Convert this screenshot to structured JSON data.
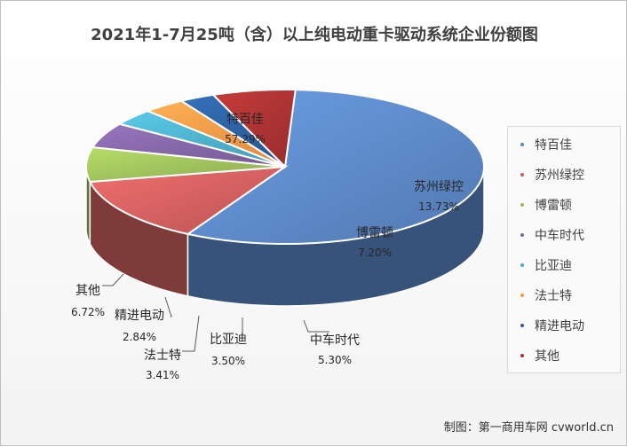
{
  "chart_data": {
    "type": "pie",
    "title": "2021年1-7月25吨（含）以上纯电动重卡驱动系统企业份额图",
    "slices": [
      {
        "name": "特百佳",
        "value": 57.29,
        "label": "57.29%",
        "color": "#5b86c3"
      },
      {
        "name": "苏州绿控",
        "value": 13.73,
        "label": "13.73%",
        "color": "#cd5d5d"
      },
      {
        "name": "博雷顿",
        "value": 7.2,
        "label": "7.20%",
        "color": "#9bbb59"
      },
      {
        "name": "中车时代",
        "value": 5.3,
        "label": "5.30%",
        "color": "#8064a2"
      },
      {
        "name": "比亚迪",
        "value": 3.5,
        "label": "3.50%",
        "color": "#4bacc6"
      },
      {
        "name": "法士特",
        "value": 3.41,
        "label": "3.41%",
        "color": "#f79646"
      },
      {
        "name": "精进电动",
        "value": 2.84,
        "label": "2.84%",
        "color": "#2c5f9e"
      },
      {
        "name": "其他",
        "value": 6.72,
        "label": "6.72%",
        "color": "#a83232"
      }
    ],
    "legend_position": "right"
  },
  "footer": "制图：第一商用车网 cvworld.cn"
}
